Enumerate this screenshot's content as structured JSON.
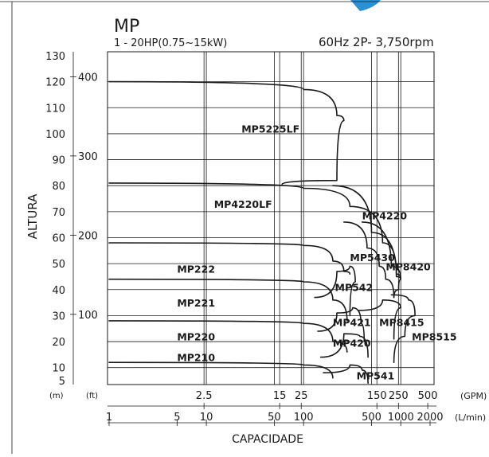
{
  "chart_data": {
    "type": "line",
    "title": "MP",
    "subtitle": "1 - 20HP(0.75~15kW)",
    "spec": "60Hz 2P- 3,750rpm",
    "ylabel": "ALTURA",
    "xlabel": "CAPACIDADE",
    "y_unit_m": "(m)",
    "y_unit_ft": "(ft)",
    "x_unit_gpm": "(GPM)",
    "x_unit_lmin": "(L/min)",
    "y_scale": "linear",
    "x_scale": "log",
    "ylim_m": [
      5,
      130
    ],
    "y_ticks_m": [
      "130",
      "120",
      "110",
      "100",
      "90",
      "80",
      "70",
      "60",
      "50",
      "40",
      "30",
      "20",
      "10",
      "5"
    ],
    "y_ticks_ft": [
      "400",
      "300",
      "200",
      "100"
    ],
    "x_ticks_gpm": [
      "2.5",
      "15",
      "25",
      "150",
      "250",
      "500"
    ],
    "x_ticks_lmin": [
      "1",
      "5",
      "10",
      "50",
      "100",
      "500",
      "1000",
      "2000"
    ],
    "grid": true,
    "series": [
      {
        "name": "MP5225LF",
        "label_lmin": 23,
        "label_m": 100.5,
        "points": [
          [
            1,
            120
          ],
          [
            100,
            117
          ],
          [
            220,
            107
          ],
          [
            260,
            105
          ],
          [
            220,
            82
          ],
          [
            60,
            80.5
          ]
        ]
      },
      {
        "name": "MP4220LF",
        "label_lmin": 12,
        "label_m": 71.5,
        "points": [
          [
            1,
            81
          ],
          [
            100,
            79
          ],
          [
            300,
            72
          ],
          [
            650,
            58
          ],
          [
            900,
            46
          ],
          [
            1000,
            44
          ]
        ]
      },
      {
        "name": "MP4220",
        "label_lmin": 400,
        "label_m": 67,
        "points": [
          [
            200,
            80
          ],
          [
            500,
            62
          ],
          [
            900,
            45
          ],
          [
            1000,
            44
          ]
        ]
      },
      {
        "name": "MP5430",
        "label_lmin": 300,
        "label_m": 51,
        "points": [
          [
            260,
            66
          ],
          [
            450,
            56
          ],
          [
            600,
            49
          ],
          [
            700,
            44
          ],
          [
            850,
            37
          ]
        ]
      },
      {
        "name": "MP8420",
        "label_lmin": 700,
        "label_m": 47.5,
        "points": [
          [
            400,
            66
          ],
          [
            800,
            49
          ],
          [
            1000,
            44
          ],
          [
            950,
            40
          ],
          [
            850,
            37
          ]
        ]
      },
      {
        "name": "MP222",
        "label_lmin": 5,
        "label_m": 46.5,
        "points": [
          [
            1,
            58
          ],
          [
            100,
            57
          ],
          [
            200,
            51
          ],
          [
            260,
            47
          ],
          [
            300,
            46
          ]
        ]
      },
      {
        "name": "MP542",
        "label_lmin": 210,
        "label_m": 39.5,
        "points": [
          [
            130,
            37
          ],
          [
            220,
            47
          ],
          [
            300,
            49
          ],
          [
            340,
            43
          ],
          [
            300,
            30
          ]
        ]
      },
      {
        "name": "MP221",
        "label_lmin": 5,
        "label_m": 33.5,
        "points": [
          [
            1,
            44
          ],
          [
            100,
            43
          ],
          [
            200,
            36
          ],
          [
            280,
            28
          ]
        ]
      },
      {
        "name": "MP421",
        "label_lmin": 200,
        "label_m": 26,
        "points": [
          [
            140,
            24
          ],
          [
            220,
            31
          ],
          [
            320,
            33
          ],
          [
            390,
            27
          ],
          [
            420,
            20
          ]
        ]
      },
      {
        "name": "MP8415",
        "label_lmin": 600,
        "label_m": 26,
        "points": [
          [
            370,
            32
          ],
          [
            650,
            36
          ],
          [
            1000,
            33
          ],
          [
            850,
            21
          ]
        ]
      },
      {
        "name": "MP8515",
        "label_lmin": 1300,
        "label_m": 20.5,
        "points": [
          [
            800,
            38
          ],
          [
            1200,
            36
          ],
          [
            1400,
            30
          ],
          [
            1100,
            22
          ],
          [
            850,
            12
          ]
        ]
      },
      {
        "name": "MP220",
        "label_lmin": 5,
        "label_m": 20.5,
        "points": [
          [
            1,
            28
          ],
          [
            100,
            27
          ],
          [
            200,
            20
          ],
          [
            280,
            16
          ]
        ]
      },
      {
        "name": "MP420",
        "label_lmin": 200,
        "label_m": 18,
        "points": [
          [
            150,
            14
          ],
          [
            260,
            23
          ],
          [
            380,
            22
          ],
          [
            460,
            14
          ]
        ]
      },
      {
        "name": "MP210",
        "label_lmin": 5,
        "label_m": 12.5,
        "points": [
          [
            1,
            12
          ],
          [
            100,
            11
          ],
          [
            200,
            6
          ]
        ]
      },
      {
        "name": "MP541",
        "label_lmin": 350,
        "label_m": 5.5,
        "points": [
          [
            160,
            8
          ],
          [
            300,
            11
          ],
          [
            400,
            9
          ],
          [
            460,
            4
          ]
        ]
      }
    ]
  }
}
